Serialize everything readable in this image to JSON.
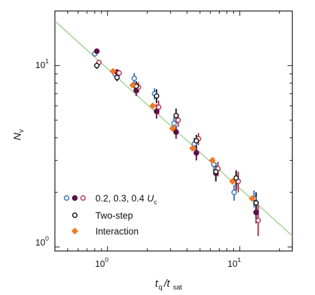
{
  "chart_data": {
    "type": "scatter",
    "title": "",
    "xlabel": {
      "main": "t",
      "sub1": "q",
      "sep": "/t",
      "sub2": "sat"
    },
    "ylabel": {
      "main": "N",
      "sub": "v"
    },
    "xscale": "log",
    "yscale": "log",
    "xlim": [
      0.4,
      25
    ],
    "ylim": [
      0.95,
      20
    ],
    "x_ticks": [
      {
        "value": 1,
        "label": "10",
        "exp": "0"
      },
      {
        "value": 10,
        "label": "10",
        "exp": "1"
      }
    ],
    "y_ticks": [
      {
        "value": 1,
        "label": "10",
        "exp": "0"
      },
      {
        "value": 10,
        "label": "10",
        "exp": "1"
      }
    ],
    "grid": false,
    "legend_position": "bottom-left",
    "legend": [
      {
        "id": "uc",
        "text_pre": "0.2, 0.3, 0.4",
        "text_var": "U",
        "text_sub": "c",
        "markers": [
          "#3b6fb0",
          "#5a1048",
          "#b03448"
        ]
      },
      {
        "id": "two",
        "text": "Two-step",
        "color": "#111111"
      },
      {
        "id": "inter",
        "text": "Interaction",
        "color": "#f07a22"
      }
    ],
    "fit_line": {
      "color": "#a8d49a",
      "points": [
        [
          0.4,
          17.6
        ],
        [
          25,
          1.15
        ]
      ]
    },
    "series": [
      {
        "id": "u02",
        "marker": "circle-open",
        "color": "#3b6fb0",
        "points": [
          {
            "x": 0.83,
            "y": 11.6,
            "err": [
              0.3,
              0.3
            ]
          },
          {
            "x": 1.18,
            "y": 9.0,
            "err": [
              0.35,
              0.35
            ]
          },
          {
            "x": 1.65,
            "y": 8.5,
            "err": [
              0.6,
              0.6
            ]
          },
          {
            "x": 2.35,
            "y": 7.0,
            "err": [
              0.5,
              0.5
            ]
          },
          {
            "x": 3.3,
            "y": 4.8,
            "err": [
              0.4,
              0.4
            ]
          },
          {
            "x": 4.7,
            "y": 3.7,
            "err": [
              0.3,
              0.3
            ]
          },
          {
            "x": 6.6,
            "y": 2.85,
            "err": [
              0.25,
              0.25
            ]
          },
          {
            "x": 9.4,
            "y": 2.0,
            "err": [
              0.2,
              0.2
            ]
          },
          {
            "x": 13.3,
            "y": 1.85,
            "err": [
              0.2,
              0.2
            ]
          }
        ]
      },
      {
        "id": "u03",
        "marker": "circle-filled",
        "color": "#5a1048",
        "points": [
          {
            "x": 0.83,
            "y": 12.0,
            "err": [
              0.3,
              0.3
            ]
          },
          {
            "x": 1.18,
            "y": 9.2,
            "err": [
              0.35,
              0.35
            ]
          },
          {
            "x": 1.65,
            "y": 7.3,
            "err": [
              0.5,
              0.6
            ]
          },
          {
            "x": 2.35,
            "y": 5.6,
            "err": [
              0.5,
              0.5
            ]
          },
          {
            "x": 3.3,
            "y": 4.3,
            "err": [
              0.35,
              0.35
            ]
          },
          {
            "x": 4.7,
            "y": 3.3,
            "err": [
              0.3,
              0.3
            ]
          },
          {
            "x": 6.6,
            "y": 2.55,
            "err": [
              0.25,
              0.3
            ]
          },
          {
            "x": 9.4,
            "y": 2.35,
            "err": [
              0.3,
              0.3
            ]
          },
          {
            "x": 13.3,
            "y": 1.55,
            "err": [
              0.2,
              0.3
            ]
          }
        ]
      },
      {
        "id": "u04",
        "marker": "circle-open",
        "color": "#b03448",
        "points": [
          {
            "x": 0.83,
            "y": 10.4,
            "err": [
              0.3,
              0.3
            ]
          },
          {
            "x": 1.18,
            "y": 9.1,
            "err": [
              0.35,
              0.35
            ]
          },
          {
            "x": 1.65,
            "y": 7.6,
            "err": [
              0.5,
              0.5
            ]
          },
          {
            "x": 2.35,
            "y": 5.9,
            "err": [
              0.5,
              0.5
            ]
          },
          {
            "x": 3.3,
            "y": 5.0,
            "err": [
              0.4,
              0.4
            ]
          },
          {
            "x": 4.7,
            "y": 3.95,
            "err": [
              0.3,
              0.3
            ]
          },
          {
            "x": 6.6,
            "y": 2.7,
            "err": [
              0.25,
              0.25
            ]
          },
          {
            "x": 9.4,
            "y": 2.3,
            "err": [
              0.3,
              0.3
            ]
          },
          {
            "x": 13.3,
            "y": 1.4,
            "err": [
              0.25,
              0.3
            ]
          }
        ]
      },
      {
        "id": "two",
        "marker": "circle-open",
        "color": "#111111",
        "points": [
          {
            "x": 0.83,
            "y": 10.0,
            "err": [
              0.4,
              0.4
            ]
          },
          {
            "x": 1.18,
            "y": 8.6,
            "err": [
              0.4,
              0.4
            ]
          },
          {
            "x": 1.65,
            "y": 7.7,
            "err": [
              0.5,
              0.5
            ]
          },
          {
            "x": 2.35,
            "y": 6.8,
            "err": [
              0.6,
              0.6
            ]
          },
          {
            "x": 3.3,
            "y": 5.3,
            "err": [
              0.5,
              0.5
            ]
          },
          {
            "x": 4.7,
            "y": 3.85,
            "err": [
              0.3,
              0.3
            ]
          },
          {
            "x": 6.6,
            "y": 2.6,
            "err": [
              0.3,
              0.3
            ]
          },
          {
            "x": 9.4,
            "y": 2.4,
            "err": [
              0.2,
              0.2
            ]
          },
          {
            "x": 13.3,
            "y": 1.75,
            "err": [
              0.15,
              0.25
            ]
          }
        ]
      },
      {
        "id": "inter",
        "marker": "diamond",
        "color": "#f07a22",
        "points": [
          {
            "x": 1.1,
            "y": 9.3
          },
          {
            "x": 1.55,
            "y": 7.8
          },
          {
            "x": 2.2,
            "y": 6.0
          },
          {
            "x": 3.1,
            "y": 4.5
          },
          {
            "x": 4.4,
            "y": 3.5
          },
          {
            "x": 6.2,
            "y": 3.0
          },
          {
            "x": 8.8,
            "y": 2.3
          },
          {
            "x": 12.4,
            "y": 1.85
          }
        ]
      }
    ]
  }
}
